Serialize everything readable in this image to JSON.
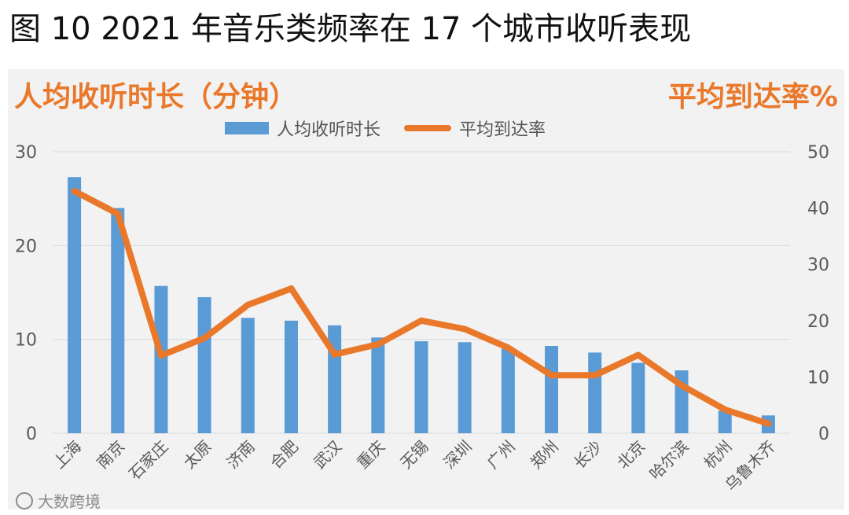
{
  "figure": {
    "title": "图 10 2021 年音乐类频率在 17 个城市收听表现"
  },
  "watermark": {
    "text": "大数跨境",
    "icon": "watermark-logo-icon"
  },
  "colors": {
    "bar": "#5B9BD5",
    "line": "#E9782A",
    "axis_text": "#595959",
    "grid": "#d9d9d9",
    "panel_bg": "#f2f2f2"
  },
  "chart_data": {
    "type": "bar",
    "combo": "bar+line",
    "title": "",
    "left_axis_title": "人均收听时长（分钟）",
    "right_axis_title": "平均到达率%",
    "categories": [
      "上海",
      "南京",
      "石家庄",
      "太原",
      "济南",
      "合肥",
      "武汉",
      "重庆",
      "无锡",
      "深圳",
      "广州",
      "郑州",
      "长沙",
      "北京",
      "哈尔滨",
      "杭州",
      "乌鲁木齐"
    ],
    "series": [
      {
        "name": "人均收听时长",
        "type": "bar",
        "axis": "left",
        "values": [
          27.3,
          24.0,
          15.7,
          14.5,
          12.3,
          12.0,
          11.5,
          10.2,
          9.8,
          9.7,
          9.0,
          9.3,
          8.6,
          7.5,
          6.7,
          2.4,
          1.9
        ]
      },
      {
        "name": "平均到达率",
        "type": "line",
        "axis": "right",
        "values": [
          43.0,
          39.0,
          13.8,
          16.9,
          22.8,
          25.7,
          14.0,
          15.8,
          20.0,
          18.5,
          15.2,
          10.3,
          10.3,
          13.9,
          8.5,
          4.2,
          1.7
        ]
      }
    ],
    "y_left": {
      "ylim": [
        0,
        30
      ],
      "ticks": [
        0,
        10,
        20,
        30
      ]
    },
    "y_right": {
      "ylim": [
        0,
        50
      ],
      "ticks": [
        0,
        10,
        20,
        30,
        40,
        50
      ]
    },
    "grid": true,
    "legend_position": "top-center"
  }
}
